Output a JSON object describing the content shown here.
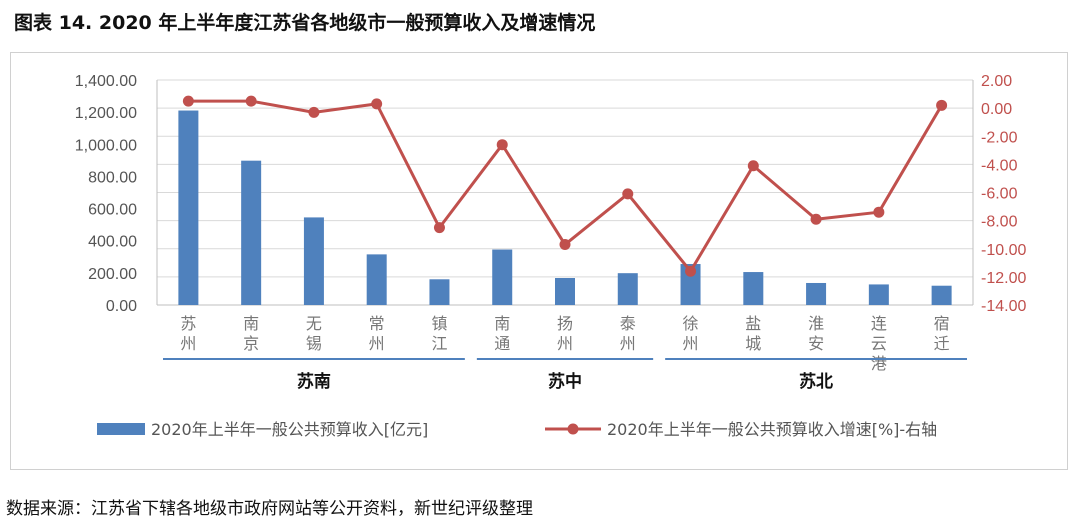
{
  "title": "图表 14. 2020 年上半年度江苏省各地级市一般预算收入及增速情况",
  "source": "数据来源：江苏省下辖各地级市政府网站等公开资料，新世纪评级整理",
  "chart_data": {
    "type": "bar+line",
    "categories": [
      "苏州",
      "南京",
      "无锡",
      "常州",
      "镇江",
      "南通",
      "扬州",
      "泰州",
      "徐州",
      "盐城",
      "淮安",
      "连云港",
      "宿迁"
    ],
    "category_label_lines": [
      [
        "苏",
        "州"
      ],
      [
        "南",
        "京"
      ],
      [
        "无",
        "锡"
      ],
      [
        "常",
        "州"
      ],
      [
        "镇",
        "江"
      ],
      [
        "南",
        "通"
      ],
      [
        "扬",
        "州"
      ],
      [
        "泰",
        "州"
      ],
      [
        "徐",
        "州"
      ],
      [
        "盐",
        "城"
      ],
      [
        "淮",
        "安"
      ],
      [
        "连",
        "云",
        "港"
      ],
      [
        "宿",
        "迁"
      ]
    ],
    "series": [
      {
        "name": "2020年上半年一般公共预算收入[亿元]",
        "type": "bar",
        "axis": "left",
        "color": "#4f81bd",
        "values": [
          1210,
          898,
          545,
          315,
          160,
          345,
          168,
          198,
          255,
          205,
          137,
          128,
          120
        ]
      },
      {
        "name": "2020年上半年一般公共预算收入增速[%]-右轴",
        "type": "line",
        "axis": "right",
        "color": "#c0504d",
        "values": [
          0.5,
          0.5,
          -0.3,
          0.3,
          -8.5,
          -2.6,
          -9.7,
          -6.1,
          -11.6,
          -4.1,
          -7.9,
          -7.4,
          0.2
        ]
      }
    ],
    "y_left": {
      "min": 0,
      "max": 1400,
      "step": 200,
      "tick_labels": [
        "0.00",
        "200.00",
        "400.00",
        "600.00",
        "800.00",
        "1,000.00",
        "1,200.00",
        "1,400.00"
      ]
    },
    "y_right": {
      "min": -14,
      "max": 2,
      "step": 2,
      "tick_labels": [
        "-14.00",
        "-12.00",
        "-10.00",
        "-8.00",
        "-6.00",
        "-4.00",
        "-2.00",
        "0.00",
        "2.00"
      ]
    },
    "groups": [
      {
        "label": "苏南",
        "from": 0,
        "to": 4
      },
      {
        "label": "苏中",
        "from": 5,
        "to": 7
      },
      {
        "label": "苏北",
        "from": 8,
        "to": 12
      }
    ],
    "gridlines": true,
    "legend_position": "bottom"
  }
}
